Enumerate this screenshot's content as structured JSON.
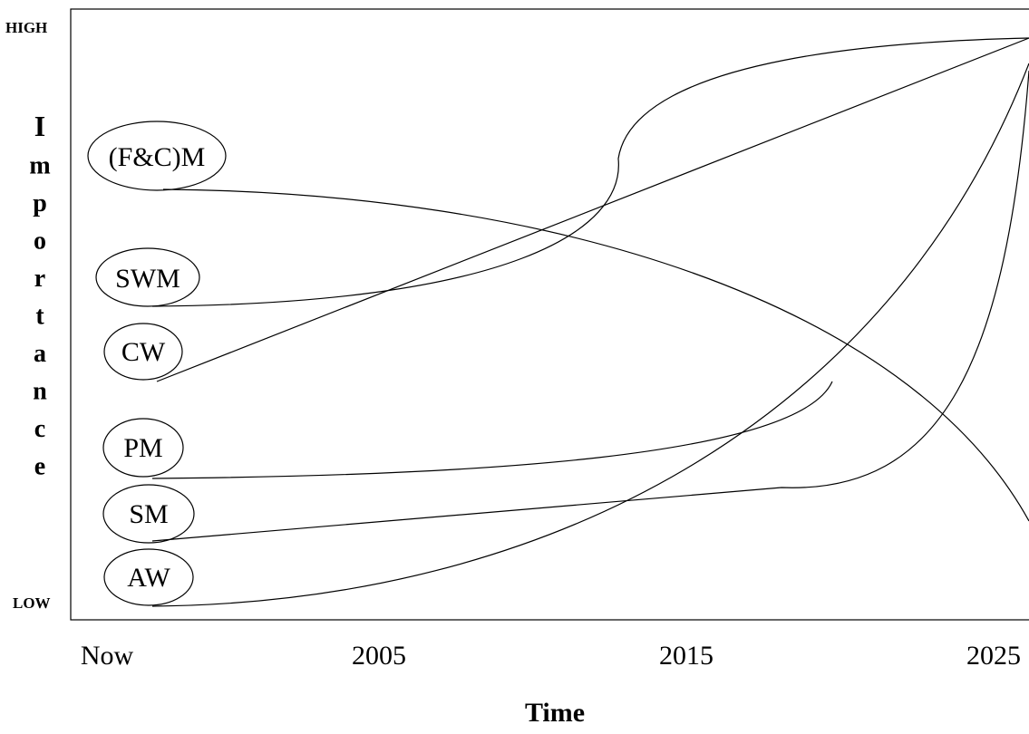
{
  "chart_data": {
    "type": "line",
    "title": "",
    "xlabel": "Time",
    "ylabel": "Importance",
    "x_ticks": [
      "Now",
      "2005",
      "2015",
      "2025"
    ],
    "y_ticks": [
      "HIGH",
      "LOW"
    ],
    "grid": false,
    "series": [
      {
        "name": "(F&C)M",
        "start": "HIGH-mid",
        "trend": "declining to LOW by 2025"
      },
      {
        "name": "SWM",
        "start": "mid",
        "trend": "rising to HIGH by 2025"
      },
      {
        "name": "CW",
        "start": "mid",
        "trend": "rising linearly to HIGH by 2025"
      },
      {
        "name": "PM",
        "start": "low",
        "trend": "slowly rising, ends near 2020"
      },
      {
        "name": "SM",
        "start": "low",
        "trend": "slowly rising then sharply to HIGH by 2025"
      },
      {
        "name": "AW",
        "start": "LOW",
        "trend": "accelerating rise to HIGH by 2025"
      }
    ]
  },
  "labels": {
    "high": "HIGH",
    "low": "LOW",
    "ylabel_letters": [
      "I",
      "m",
      "p",
      "o",
      "r",
      "t",
      "a",
      "n",
      "c",
      "e"
    ],
    "xlabel": "Time"
  }
}
